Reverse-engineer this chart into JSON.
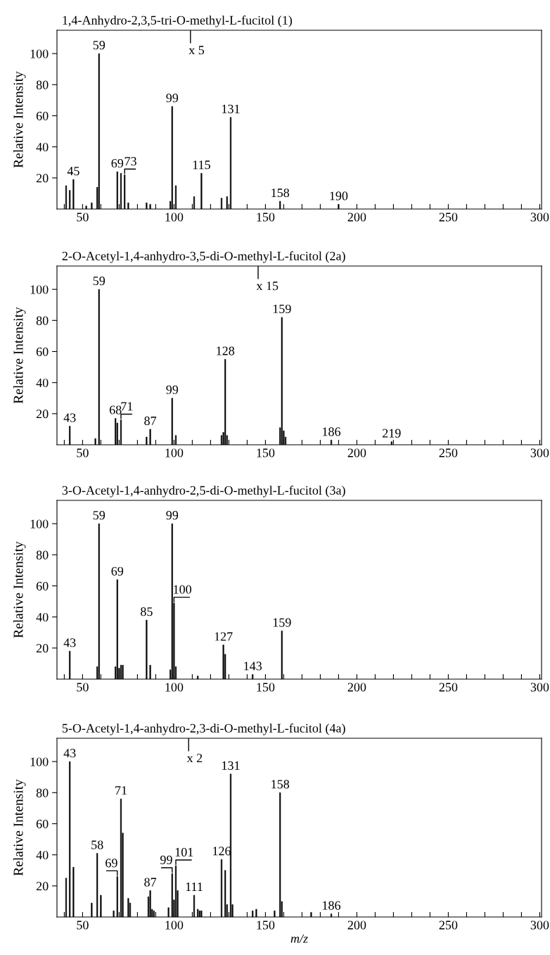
{
  "chart_data": [
    {
      "type": "bar",
      "title": "1,4-Anhydro-2,3,5-tri-O-methyl-L-fucitol (1)",
      "ylabel": "Relative Intensity",
      "color": "#000000",
      "x": [
        41,
        43,
        45,
        52,
        55,
        58,
        59,
        69,
        71,
        73,
        75,
        85,
        87,
        98,
        99,
        101,
        111,
        115,
        126,
        129,
        131,
        158,
        190
      ],
      "values": [
        15,
        12,
        19,
        2,
        4,
        14,
        100,
        24,
        23,
        22,
        4,
        4,
        3,
        5,
        66,
        15,
        8,
        23,
        7,
        8,
        59,
        5,
        3
      ],
      "annotations": [
        {
          "text": "45",
          "x": 45,
          "y": 19
        },
        {
          "text": "59",
          "x": 59,
          "y": 100
        },
        {
          "text": "69",
          "x": 69,
          "y": 24
        },
        {
          "text": "73",
          "x": 73,
          "y": 22
        },
        {
          "text": "99",
          "x": 99,
          "y": 66
        },
        {
          "text": "115",
          "x": 115,
          "y": 23
        },
        {
          "text": "131",
          "x": 131,
          "y": 59
        },
        {
          "text": "158",
          "x": 158,
          "y": 5
        },
        {
          "text": "190",
          "x": 190,
          "y": 3
        }
      ],
      "ref_lines": [
        {
          "axis": "x",
          "value": 109,
          "label": "x 5"
        }
      ],
      "xlim": [
        36,
        301
      ],
      "ylim": [
        0,
        115
      ],
      "xticks": [
        {
          "value": 40,
          "label": null
        },
        50,
        {
          "value": 60,
          "label": null
        },
        {
          "value": 70,
          "label": null
        },
        {
          "value": 80,
          "label": null
        },
        {
          "value": 90,
          "label": null
        },
        100,
        {
          "value": 110,
          "label": null
        },
        {
          "value": 120,
          "label": null
        },
        {
          "value": 130,
          "label": null
        },
        {
          "value": 140,
          "label": null
        },
        150,
        {
          "value": 160,
          "label": null
        },
        {
          "value": 170,
          "label": null
        },
        {
          "value": 180,
          "label": null
        },
        {
          "value": 190,
          "label": null
        },
        200,
        {
          "value": 210,
          "label": null
        },
        {
          "value": 220,
          "label": null
        },
        {
          "value": 230,
          "label": null
        },
        {
          "value": 240,
          "label": null
        },
        250,
        {
          "value": 260,
          "label": null
        },
        {
          "value": 270,
          "label": null
        },
        {
          "value": 280,
          "label": null
        },
        {
          "value": 290,
          "label": null
        },
        300
      ],
      "yticks": [
        20,
        40,
        60,
        80,
        100
      ]
    },
    {
      "type": "bar",
      "title": "2-O-Acetyl-1,4-anhydro-3,5-di-O-methyl-L-fucitol (2a)",
      "ylabel": "Relative Intensity",
      "color": "#000000",
      "x": [
        43,
        57,
        59,
        68,
        69,
        71,
        85,
        87,
        99,
        101,
        126,
        127,
        128,
        129,
        158,
        159,
        160,
        161,
        186,
        219
      ],
      "values": [
        12,
        4,
        100,
        17,
        14,
        16,
        5,
        10,
        30,
        6,
        6,
        8,
        55,
        6,
        11,
        82,
        9,
        5,
        3,
        2
      ],
      "annotations": [
        {
          "text": "43",
          "x": 43,
          "y": 12
        },
        {
          "text": "59",
          "x": 59,
          "y": 100
        },
        {
          "text": "68",
          "x": 68,
          "y": 17
        },
        {
          "text": "71",
          "x": 71,
          "y": 16
        },
        {
          "text": "87",
          "x": 87,
          "y": 10
        },
        {
          "text": "99",
          "x": 99,
          "y": 30
        },
        {
          "text": "128",
          "x": 128,
          "y": 55
        },
        {
          "text": "159",
          "x": 159,
          "y": 82
        },
        {
          "text": "186",
          "x": 186,
          "y": 3
        },
        {
          "text": "219",
          "x": 219,
          "y": 2
        }
      ],
      "ref_lines": [
        {
          "axis": "x",
          "value": 146,
          "label": "x 15"
        }
      ],
      "xlim": [
        36,
        301
      ],
      "ylim": [
        0,
        115
      ],
      "xticks": [
        {
          "value": 40,
          "label": null
        },
        50,
        {
          "value": 60,
          "label": null
        },
        {
          "value": 70,
          "label": null
        },
        {
          "value": 80,
          "label": null
        },
        {
          "value": 90,
          "label": null
        },
        100,
        {
          "value": 110,
          "label": null
        },
        {
          "value": 120,
          "label": null
        },
        {
          "value": 130,
          "label": null
        },
        {
          "value": 140,
          "label": null
        },
        150,
        {
          "value": 160,
          "label": null
        },
        {
          "value": 170,
          "label": null
        },
        {
          "value": 180,
          "label": null
        },
        {
          "value": 190,
          "label": null
        },
        200,
        {
          "value": 210,
          "label": null
        },
        {
          "value": 220,
          "label": null
        },
        {
          "value": 230,
          "label": null
        },
        {
          "value": 240,
          "label": null
        },
        250,
        {
          "value": 260,
          "label": null
        },
        {
          "value": 270,
          "label": null
        },
        {
          "value": 280,
          "label": null
        },
        {
          "value": 290,
          "label": null
        },
        300
      ],
      "yticks": [
        20,
        40,
        60,
        80,
        100
      ]
    },
    {
      "type": "bar",
      "title": "3-O-Acetyl-1,4-anhydro-2,5-di-O-methyl-L-fucitol (3a)",
      "ylabel": "Relative Intensity",
      "color": "#000000",
      "x": [
        43,
        58,
        59,
        68,
        69,
        70,
        71,
        72,
        85,
        87,
        98,
        99,
        100,
        101,
        113,
        127,
        128,
        143,
        159
      ],
      "values": [
        18,
        8,
        100,
        8,
        64,
        7,
        9,
        9,
        38,
        9,
        6,
        100,
        49,
        8,
        2,
        22,
        16,
        3,
        31
      ],
      "annotations": [
        {
          "text": "43",
          "x": 43,
          "y": 18
        },
        {
          "text": "59",
          "x": 59,
          "y": 100
        },
        {
          "text": "69",
          "x": 69,
          "y": 64
        },
        {
          "text": "85",
          "x": 85,
          "y": 38
        },
        {
          "text": "99",
          "x": 99,
          "y": 100
        },
        {
          "text": "100",
          "x": 100,
          "y": 49
        },
        {
          "text": "127",
          "x": 127,
          "y": 22
        },
        {
          "text": "143",
          "x": 143,
          "y": 3
        },
        {
          "text": "159",
          "x": 159,
          "y": 31
        }
      ],
      "xlim": [
        36,
        301
      ],
      "ylim": [
        0,
        115
      ],
      "xticks": [
        {
          "value": 40,
          "label": null
        },
        50,
        {
          "value": 60,
          "label": null
        },
        {
          "value": 70,
          "label": null
        },
        {
          "value": 80,
          "label": null
        },
        {
          "value": 90,
          "label": null
        },
        100,
        {
          "value": 110,
          "label": null
        },
        {
          "value": 120,
          "label": null
        },
        {
          "value": 130,
          "label": null
        },
        {
          "value": 140,
          "label": null
        },
        150,
        {
          "value": 160,
          "label": null
        },
        {
          "value": 170,
          "label": null
        },
        {
          "value": 180,
          "label": null
        },
        {
          "value": 190,
          "label": null
        },
        200,
        {
          "value": 210,
          "label": null
        },
        {
          "value": 220,
          "label": null
        },
        {
          "value": 230,
          "label": null
        },
        {
          "value": 240,
          "label": null
        },
        250,
        {
          "value": 260,
          "label": null
        },
        {
          "value": 270,
          "label": null
        },
        {
          "value": 280,
          "label": null
        },
        {
          "value": 290,
          "label": null
        },
        300
      ],
      "yticks": [
        20,
        40,
        60,
        80,
        100
      ]
    },
    {
      "type": "bar",
      "title": "5-O-Acetyl-1,4-anhydro-2,3-di-O-methyl-L-fucitol (4a)",
      "ylabel": "Relative Intensity",
      "xlabel": "m/z",
      "color": "#000000",
      "x": [
        41,
        43,
        45,
        55,
        58,
        60,
        67,
        69,
        71,
        72,
        75,
        76,
        86,
        87,
        88,
        89,
        97,
        99,
        100,
        101,
        102,
        111,
        113,
        114,
        115,
        126,
        128,
        129,
        131,
        132,
        143,
        145,
        155,
        158,
        159,
        175,
        186
      ],
      "values": [
        25,
        100,
        32,
        9,
        41,
        14,
        4,
        26,
        76,
        54,
        12,
        9,
        13,
        17,
        5,
        4,
        6,
        28,
        11,
        33,
        17,
        14,
        5,
        4,
        4,
        37,
        30,
        8,
        92,
        8,
        4,
        5,
        4,
        80,
        10,
        3,
        2
      ],
      "annotations": [
        {
          "text": "43",
          "x": 43,
          "y": 100
        },
        {
          "text": "58",
          "x": 58,
          "y": 41
        },
        {
          "text": "69",
          "x": 69,
          "y": 26
        },
        {
          "text": "71",
          "x": 71,
          "y": 76
        },
        {
          "text": "87",
          "x": 87,
          "y": 17
        },
        {
          "text": "99",
          "x": 99,
          "y": 28
        },
        {
          "text": "101",
          "x": 101,
          "y": 33
        },
        {
          "text": "111",
          "x": 111,
          "y": 14
        },
        {
          "text": "126",
          "x": 126,
          "y": 37
        },
        {
          "text": "131",
          "x": 131,
          "y": 92
        },
        {
          "text": "158",
          "x": 158,
          "y": 80
        },
        {
          "text": "186",
          "x": 186,
          "y": 2
        }
      ],
      "ref_lines": [
        {
          "axis": "x",
          "value": 108,
          "label": "x 2"
        }
      ],
      "xlim": [
        36,
        301
      ],
      "ylim": [
        0,
        115
      ],
      "xticks": [
        {
          "value": 40,
          "label": null
        },
        50,
        {
          "value": 60,
          "label": null
        },
        {
          "value": 70,
          "label": null
        },
        {
          "value": 80,
          "label": null
        },
        {
          "value": 90,
          "label": null
        },
        100,
        {
          "value": 110,
          "label": null
        },
        {
          "value": 120,
          "label": null
        },
        {
          "value": 130,
          "label": null
        },
        {
          "value": 140,
          "label": null
        },
        150,
        {
          "value": 160,
          "label": null
        },
        {
          "value": 170,
          "label": null
        },
        {
          "value": 180,
          "label": null
        },
        {
          "value": 190,
          "label": null
        },
        200,
        {
          "value": 210,
          "label": null
        },
        {
          "value": 220,
          "label": null
        },
        {
          "value": 230,
          "label": null
        },
        {
          "value": 240,
          "label": null
        },
        250,
        {
          "value": 260,
          "label": null
        },
        {
          "value": 270,
          "label": null
        },
        {
          "value": 280,
          "label": null
        },
        {
          "value": 290,
          "label": null
        },
        300
      ],
      "yticks": [
        20,
        40,
        60,
        80,
        100
      ]
    }
  ]
}
